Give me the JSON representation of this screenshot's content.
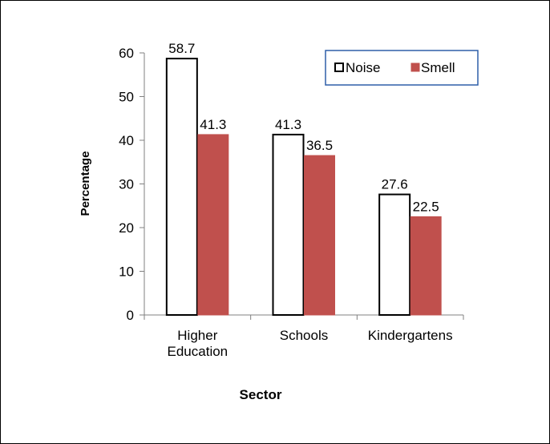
{
  "chart_data": {
    "type": "bar",
    "categories": [
      "Higher Education",
      "Schools",
      "Kindergartens"
    ],
    "category_lines": [
      [
        "Higher",
        "Education"
      ],
      [
        "Schools"
      ],
      [
        "Kindergartens"
      ]
    ],
    "series": [
      {
        "name": "Noise",
        "values": [
          58.7,
          41.3,
          27.6
        ],
        "value_labels": [
          "58.7",
          "41.3",
          "27.6"
        ],
        "color": "#ffffff",
        "stroke": "#000000"
      },
      {
        "name": "Smell",
        "values": [
          41.3,
          36.5,
          22.5
        ],
        "value_labels": [
          "41.3",
          "36.5",
          "22.5"
        ],
        "color": "#c0504d",
        "stroke": "#c0504d"
      }
    ],
    "xlabel": "Sector",
    "ylabel": "Percentage",
    "ylim": [
      0,
      60
    ],
    "yticks": [
      0,
      10,
      20,
      30,
      40,
      50,
      60
    ],
    "ytick_labels": [
      "0",
      "10",
      "20",
      "30",
      "40",
      "50",
      "60"
    ],
    "grid": false,
    "legend_position": "top-right",
    "legend_border_color": "#2e5fa8"
  }
}
